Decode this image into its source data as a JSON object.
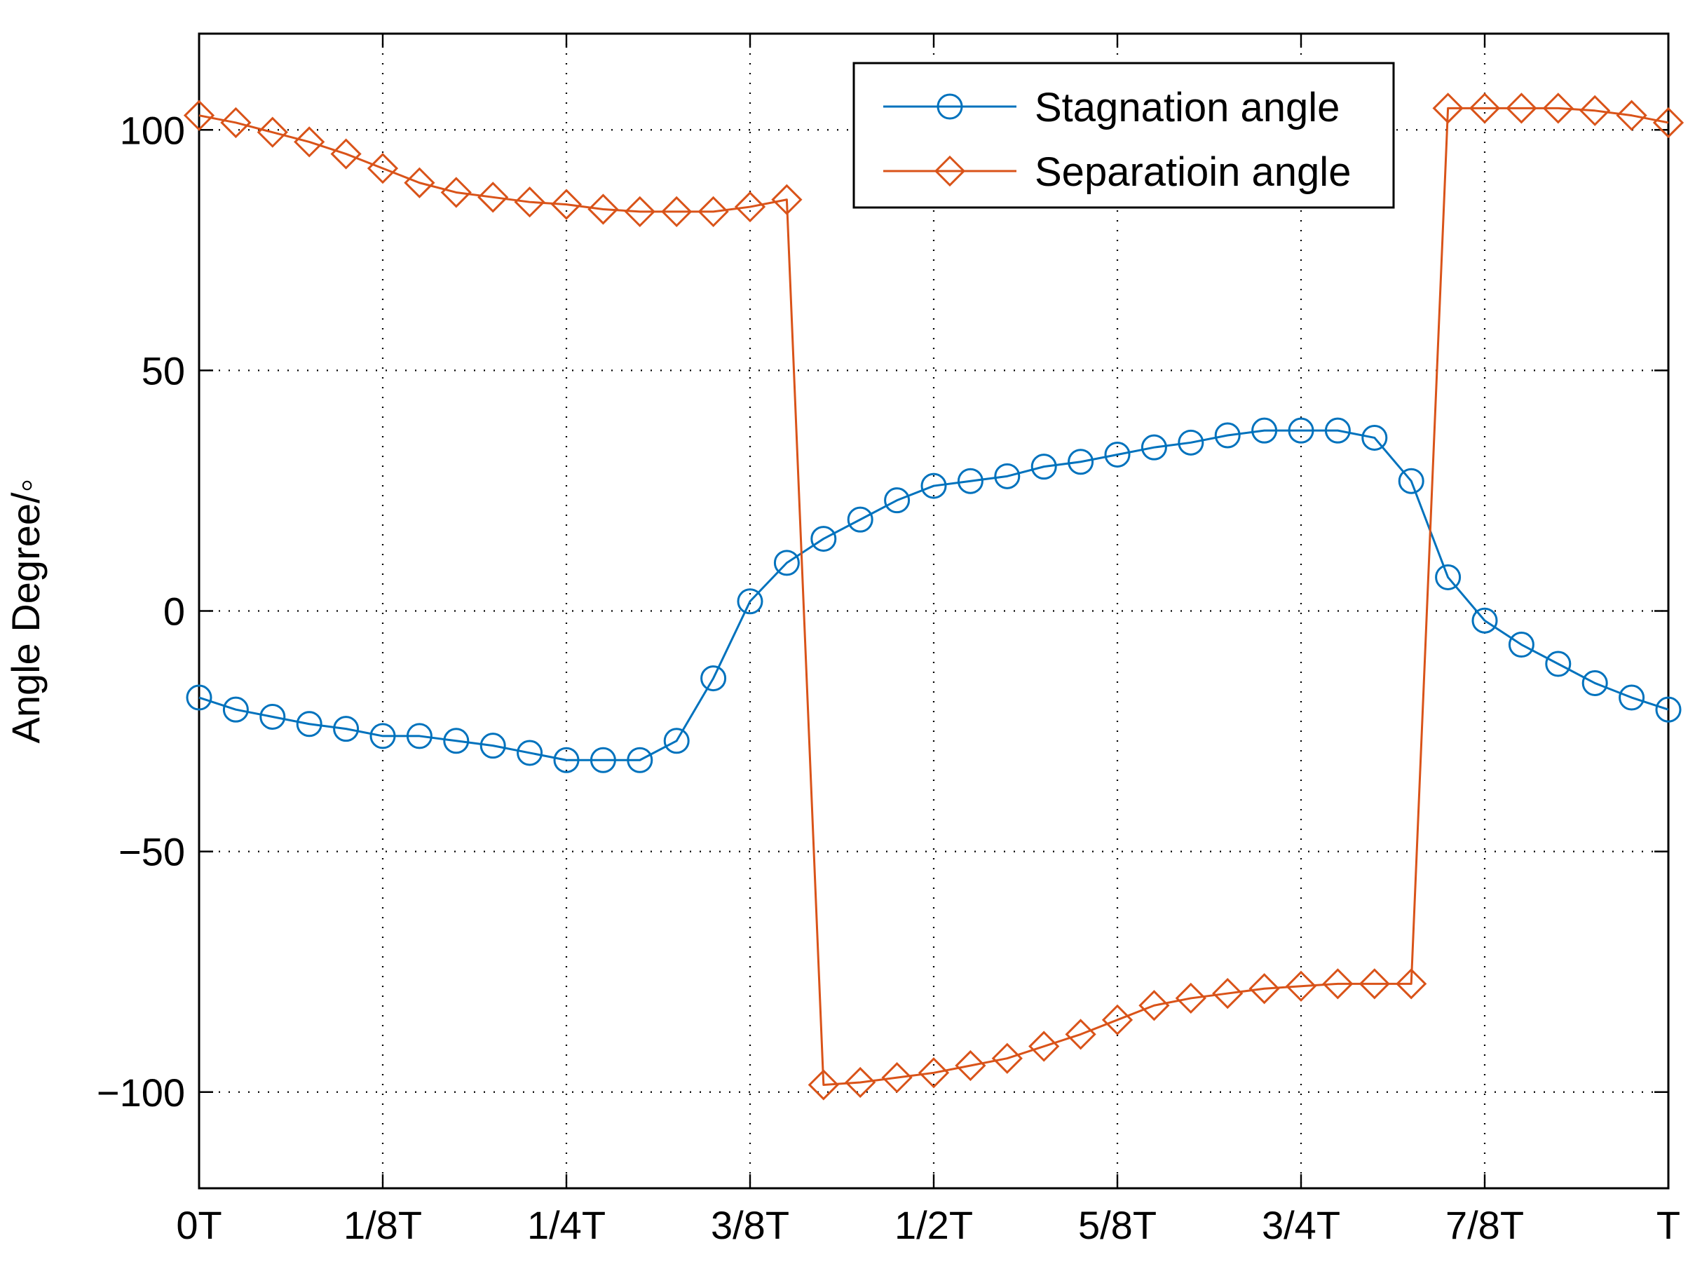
{
  "chart_data": {
    "type": "line",
    "title": "",
    "xlabel": "",
    "ylabel": "Angle Degree/◦",
    "xlim": [
      0,
      1
    ],
    "ylim": [
      -120,
      120
    ],
    "grid": true,
    "x_ticks": [
      0,
      0.125,
      0.25,
      0.375,
      0.5,
      0.625,
      0.75,
      0.875,
      1
    ],
    "x_tick_labels": [
      "0T",
      "1/8T",
      "1/4T",
      "3/8T",
      "1/2T",
      "5/8T",
      "3/4T",
      "7/8T",
      "T"
    ],
    "y_ticks": [
      -100,
      -50,
      0,
      50,
      100
    ],
    "y_tick_labels": [
      "−100",
      "−50",
      "0",
      "50",
      "100"
    ],
    "legend_position": "top-right",
    "x": [
      0,
      0.025,
      0.05,
      0.075,
      0.1,
      0.125,
      0.15,
      0.175,
      0.2,
      0.225,
      0.25,
      0.275,
      0.3,
      0.325,
      0.35,
      0.375,
      0.4,
      0.425,
      0.45,
      0.475,
      0.5,
      0.525,
      0.55,
      0.575,
      0.6,
      0.625,
      0.65,
      0.675,
      0.7,
      0.725,
      0.75,
      0.775,
      0.8,
      0.825,
      0.85,
      0.875,
      0.9,
      0.925,
      0.95,
      0.975,
      1
    ],
    "series": [
      {
        "name": "Stagnation angle",
        "color": "#0072BD",
        "marker": "circle",
        "values": [
          -18,
          -20.5,
          -22,
          -23.5,
          -24.5,
          -26,
          -26,
          -27,
          -28,
          -29.5,
          -31,
          -31,
          -31,
          -27,
          -14,
          2,
          10,
          15,
          19,
          23,
          26,
          27,
          28,
          30,
          31,
          32.5,
          34,
          35,
          36.5,
          37.5,
          37.5,
          37.5,
          36,
          27,
          7,
          -2,
          -7,
          -11,
          -15,
          -18,
          -20.5
        ]
      },
      {
        "name": "Separatioin angle",
        "color": "#D95319",
        "marker": "diamond",
        "values": [
          103,
          101.5,
          99.5,
          97.5,
          95,
          92,
          89,
          87,
          86,
          85,
          84.5,
          83.5,
          83,
          83,
          83,
          84,
          85.5,
          -98.5,
          -98,
          -97,
          -96,
          -94.5,
          -93,
          -90.5,
          -88,
          -85,
          -82,
          -80.5,
          -79.5,
          -78.5,
          -78,
          -77.5,
          -77.5,
          -77.5,
          104.5,
          104.5,
          104.5,
          104.5,
          104,
          103,
          101.5
        ]
      }
    ]
  }
}
